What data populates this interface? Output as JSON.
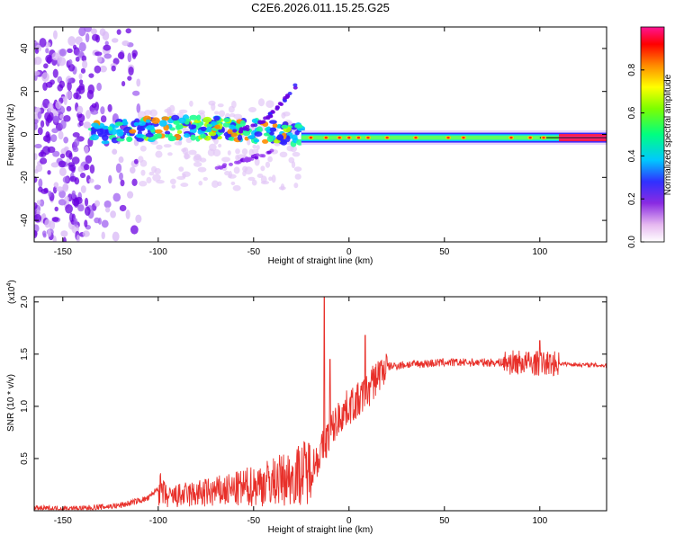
{
  "title": "C2E6.2026.011.15.25.G25",
  "chart_data": [
    {
      "type": "heatmap",
      "title": "C2E6.2026.011.15.25.G25",
      "xlabel": "Height of straight line (km)",
      "ylabel": "Frequency (Hz)",
      "xlim": [
        -165,
        135
      ],
      "ylim": [
        -50,
        50
      ],
      "xticks": [
        -150,
        -100,
        -50,
        0,
        50,
        100
      ],
      "yticks": [
        -40,
        -20,
        0,
        20,
        40
      ],
      "colorbar": {
        "label": "Normalized spectral amplitude",
        "range": [
          0,
          1
        ],
        "ticks": [
          0.0,
          0.2,
          0.4,
          0.6,
          0.8
        ],
        "tick_labels": [
          "0.0",
          "0.2",
          "0.4",
          "0.6",
          "0.8"
        ]
      },
      "bands": [
        {
          "name": "main-line",
          "x": [
            -25,
            135
          ],
          "freq": -1.5,
          "amplitude": 0.95
        },
        {
          "name": "noisy-band",
          "x": [
            -135,
            -25
          ],
          "freq": 0,
          "amplitude": 0.5
        },
        {
          "name": "upper-branch",
          "x": [
            -60,
            -25
          ],
          "freq": [
            0,
            25
          ],
          "amplitude": 0.25
        },
        {
          "name": "lower-branch",
          "x": [
            -70,
            -40
          ],
          "freq": [
            -15,
            -8
          ],
          "amplitude": 0.2
        }
      ]
    },
    {
      "type": "line",
      "xlabel": "Height of straight line (km)",
      "ylabel": "SNR (10 * v/v)",
      "yscale_label": "(x10",
      "yscale_exp": "4",
      "yscale_close": ")",
      "xlim": [
        -165,
        135
      ],
      "ylim": [
        0,
        2.05
      ],
      "xticks": [
        -150,
        -100,
        -50,
        0,
        50,
        100
      ],
      "yticks": [
        0.5,
        1.0,
        1.5,
        2.0
      ],
      "ytick_labels": [
        "0.5",
        "1.0",
        "1.5",
        "2.0"
      ],
      "series": [
        {
          "name": "SNR",
          "color": "#e8302a",
          "envelope": {
            "x": [
              -165,
              -140,
              -120,
              -105,
              -100,
              -95,
              -90,
              -80,
              -70,
              -60,
              -50,
              -40,
              -30,
              -20,
              -15,
              -10,
              -5,
              0,
              5,
              10,
              15,
              20,
              30,
              40,
              50,
              60,
              70,
              80,
              90,
              100,
              110,
              120,
              135
            ],
            "y": [
              0.02,
              0.02,
              0.05,
              0.12,
              0.22,
              0.12,
              0.14,
              0.16,
              0.18,
              0.2,
              0.24,
              0.28,
              0.32,
              0.4,
              0.55,
              0.75,
              0.9,
              1.0,
              1.05,
              1.15,
              1.3,
              1.38,
              1.4,
              1.41,
              1.42,
              1.42,
              1.42,
              1.42,
              1.42,
              1.41,
              1.41,
              1.4,
              1.39
            ]
          },
          "spikes": [
            {
              "x": -13,
              "y": 2.05
            },
            {
              "x": -10,
              "y": 1.45
            },
            {
              "x": 8.5,
              "y": 1.68
            },
            {
              "x": 100,
              "y": 1.63
            }
          ]
        }
      ]
    }
  ]
}
